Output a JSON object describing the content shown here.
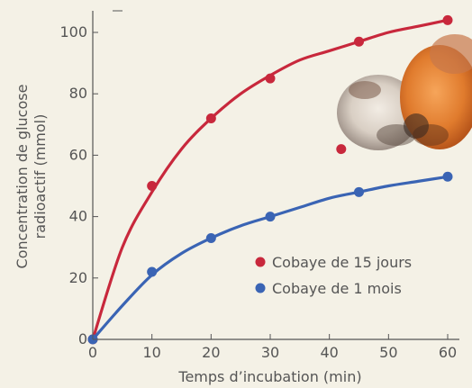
{
  "chart_data": {
    "type": "scatter",
    "xlabel": "Temps d’incubation (min)",
    "ylabel_lines": [
      "Concentration de glucose",
      "radioactif (mmol)"
    ],
    "xlim": [
      0,
      60
    ],
    "ylim": [
      0,
      110
    ],
    "x_ticks": [
      "0",
      "10",
      "20",
      "30",
      "40",
      "50",
      "60"
    ],
    "y_ticks": [
      "0",
      "20",
      "40",
      "60",
      "80",
      "100"
    ],
    "grid": false,
    "legend_position": "bottom-right",
    "series": [
      {
        "name": "Cobaye de 15 jours",
        "color": "#c8283c",
        "x": [
          0,
          10,
          20,
          30,
          42,
          45,
          60
        ],
        "y": [
          0,
          50,
          72,
          85,
          62,
          97,
          104
        ],
        "curve_x": [
          0,
          5,
          10,
          15,
          20,
          25,
          30,
          35,
          40,
          45,
          50,
          55,
          60
        ],
        "curve_y": [
          0,
          30,
          48,
          62,
          72,
          80,
          86,
          91,
          94,
          97,
          100,
          102,
          104
        ]
      },
      {
        "name": "Cobaye de 1 mois",
        "color": "#3a64b4",
        "x": [
          0,
          10,
          20,
          30,
          45,
          60
        ],
        "y": [
          0,
          22,
          33,
          40,
          48,
          53
        ],
        "curve_x": [
          0,
          5,
          10,
          15,
          20,
          25,
          30,
          35,
          40,
          45,
          50,
          55,
          60
        ],
        "curve_y": [
          0,
          11,
          21,
          28,
          33,
          37,
          40,
          43,
          46,
          48,
          50,
          51.5,
          53
        ]
      }
    ]
  },
  "image": {
    "icon": "guinea-pigs-photo"
  }
}
